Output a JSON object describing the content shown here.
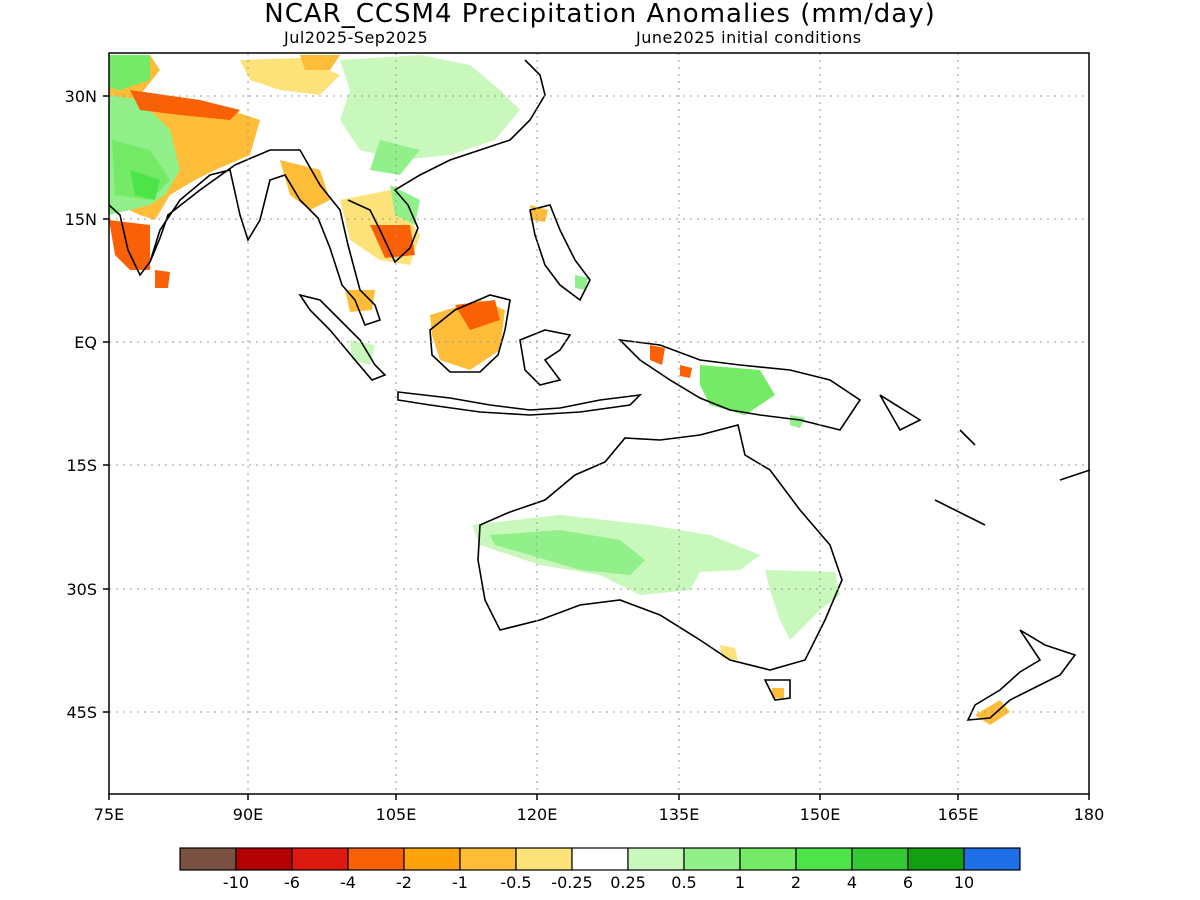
{
  "title": "NCAR_CCSM4 Precipitation Anomalies (mm/day)",
  "subtitle_left": "Jul2025-Sep2025",
  "subtitle_right": "June2025 initial conditions",
  "lat_labels": [
    "30N",
    "15N",
    "EQ",
    "15S",
    "30S",
    "45S"
  ],
  "lon_labels": [
    "75E",
    "90E",
    "105E",
    "120E",
    "135E",
    "150E",
    "165E",
    "180"
  ],
  "colorbar": {
    "colors": [
      "#7a5043",
      "#b40000",
      "#dd1a10",
      "#fa6005",
      "#fda30a",
      "#fdbd38",
      "#fde27a",
      "#ffffff",
      "#c8f8bc",
      "#92f08a",
      "#74ea66",
      "#4ce448",
      "#34c834",
      "#12a012",
      "#1e6ee6"
    ],
    "tick_labels": [
      "-10",
      "-6",
      "-4",
      "-2",
      "-1",
      "-0.5",
      "-0.25",
      "0.25",
      "0.5",
      "1",
      "2",
      "4",
      "6",
      "10"
    ]
  }
}
